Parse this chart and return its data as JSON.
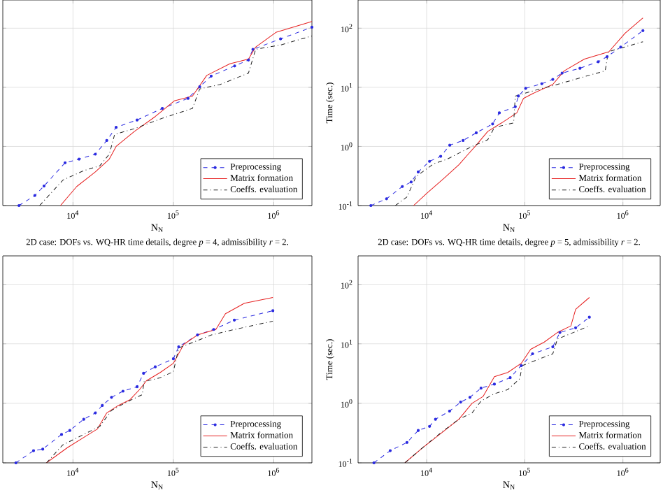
{
  "chart_data": [
    {
      "type": "line",
      "xlabel": "N$_{N}$",
      "log": "xy",
      "grid": true,
      "legend": "bottom right",
      "tick_labels": "x",
      "xlim": [
        2000,
        2400000
      ],
      "ylim": [
        0.1,
        300
      ],
      "xticks": [
        {
          "value": 10000,
          "label": "10$^{4}$"
        },
        {
          "value": 100000,
          "label": "10$^{5}$"
        },
        {
          "value": 1000000,
          "label": "10$^{6}$"
        }
      ],
      "yticks": [
        0.1,
        1,
        10,
        100
      ],
      "series": [
        {
          "name": "Preprocessing",
          "color": "#2a2ae0",
          "line_style": "dashed",
          "marker": "circle",
          "x": [
            2900,
            4170,
            5150,
            8350,
            11500,
            16700,
            21700,
            26900,
            43500,
            77600,
            140000,
            183000,
            238000,
            408000,
            560000,
            620000,
            1170000,
            2400000
          ],
          "values": [
            0.1,
            0.148,
            0.214,
            0.53,
            0.61,
            0.74,
            1.26,
            2.1,
            2.8,
            4.4,
            6.5,
            10.2,
            15.5,
            23,
            29,
            44,
            66,
            104
          ]
        },
        {
          "name": "Matrix formation",
          "color": "#e62020",
          "line_style": "solid",
          "marker": "none",
          "x": [
            7500,
            10900,
            16700,
            23000,
            26900,
            41000,
            66000,
            102000,
            155000,
            215000,
            365000,
            560000,
            660000,
            1050000,
            2400000
          ],
          "values": [
            0.1,
            0.21,
            0.37,
            0.61,
            1.0,
            1.8,
            3.2,
            5.9,
            7.1,
            15.9,
            25,
            30,
            48,
            85,
            130
          ]
        },
        {
          "name": "Coeffs. evaluation",
          "color": "#202020",
          "line_style": "dashdot",
          "marker": "none",
          "x": [
            4650,
            7950,
            12800,
            18500,
            23000,
            26000,
            41000,
            77600,
            155000,
            183000,
            294000,
            560000,
            660000,
            1170000,
            2400000
          ],
          "values": [
            0.1,
            0.27,
            0.39,
            0.47,
            0.74,
            1.6,
            2.0,
            3.0,
            4.4,
            9.4,
            11.2,
            17.4,
            44,
            52,
            74
          ]
        }
      ]
    },
    {
      "type": "line",
      "xlabel": "N$_{N}$",
      "ylabel": "Time (sec.)",
      "log": "xy",
      "grid": true,
      "legend": "bottom right",
      "xlim": [
        2000,
        2400000
      ],
      "ylim": [
        0.1,
        300
      ],
      "xticks": [
        {
          "value": 10000,
          "label": "10$^{4}$"
        },
        {
          "value": 100000,
          "label": "10$^{5}$"
        },
        {
          "value": 1000000,
          "label": "10$^{6}$"
        }
      ],
      "yticks": [
        {
          "value": 0.1,
          "label": "10$^{-1}$"
        },
        {
          "value": 1,
          "label": "10$^{0}$"
        },
        {
          "value": 10,
          "label": "10$^{1}$"
        },
        {
          "value": 100,
          "label": "10$^{2}$"
        }
      ],
      "series": [
        {
          "name": "Preprocessing",
          "color": "#2a2ae0",
          "line_style": "dashed",
          "marker": "circle",
          "x": [
            2700,
            3900,
            5650,
            6950,
            8200,
            10700,
            13900,
            17200,
            23500,
            32000,
            47000,
            55000,
            80000,
            86000,
            102000,
            149000,
            193000,
            240000,
            365000,
            560000,
            690000,
            950000,
            1600000
          ],
          "values": [
            0.1,
            0.13,
            0.21,
            0.25,
            0.37,
            0.56,
            0.68,
            1.05,
            1.26,
            1.7,
            2.4,
            3.7,
            4.7,
            7.1,
            9.6,
            11.5,
            13.6,
            17.4,
            21,
            27,
            33,
            48,
            91
          ]
        },
        {
          "name": "Matrix formation",
          "color": "#e62020",
          "line_style": "solid",
          "marker": "none",
          "x": [
            7350,
            10000,
            15400,
            21300,
            26500,
            32000,
            42000,
            58000,
            83000,
            97000,
            120000,
            193000,
            252000,
            405000,
            720000,
            1050000,
            1600000
          ],
          "values": [
            0.1,
            0.16,
            0.3,
            0.49,
            0.74,
            1.05,
            1.8,
            2.5,
            3.7,
            6.5,
            7.8,
            11.2,
            19,
            30,
            40,
            82,
            149
          ]
        },
        {
          "name": "Coeffs. evaluation",
          "color": "#202020",
          "line_style": "dashdot",
          "marker": "none",
          "x": [
            4800,
            6300,
            7800,
            11800,
            16200,
            29000,
            42000,
            49000,
            77000,
            80000,
            115000,
            215000,
            455000,
            660000,
            710000,
            1600000
          ],
          "values": [
            0.1,
            0.14,
            0.31,
            0.51,
            0.61,
            1.0,
            1.3,
            2.1,
            2.5,
            7.1,
            8.5,
            11.2,
            16,
            19,
            40,
            59
          ]
        }
      ]
    },
    {
      "type": "line",
      "title": "2D case: DOFs vs. WQ-HR time details, degree *p* = 4, admissibility *r* = 2.",
      "xlabel": "N$_{N}$",
      "log": "xy",
      "grid": true,
      "legend": "bottom right",
      "tick_labels": "x",
      "xlim": [
        2000,
        2400000
      ],
      "ylim": [
        0.1,
        300
      ],
      "xticks": [
        {
          "value": 10000,
          "label": "10$^{4}$"
        },
        {
          "value": 100000,
          "label": "10$^{5}$"
        },
        {
          "value": 1000000,
          "label": "10$^{6}$"
        }
      ],
      "yticks": [
        0.1,
        1,
        10,
        100
      ],
      "series": [
        {
          "name": "Preprocessing",
          "color": "#2a2ae0",
          "line_style": "dashed",
          "marker": "circle",
          "x": [
            2700,
            4050,
            5000,
            7700,
            9300,
            12800,
            16700,
            19600,
            24200,
            31500,
            43500,
            50500,
            66000,
            100000,
            113000,
            174000,
            252000,
            405000,
            980000
          ],
          "values": [
            0.1,
            0.16,
            0.17,
            0.3,
            0.35,
            0.54,
            0.69,
            0.92,
            1.26,
            1.6,
            1.9,
            3.2,
            4.1,
            5.6,
            8.9,
            14.1,
            17.4,
            25,
            36
          ]
        },
        {
          "name": "Matrix formation",
          "color": "#e62020",
          "line_style": "solid",
          "marker": "none",
          "x": [
            5450,
            8800,
            13400,
            17500,
            21700,
            28300,
            37000,
            46000,
            54000,
            74000,
            100000,
            127000,
            174000,
            265000,
            330000,
            510000,
            980000
          ],
          "values": [
            0.1,
            0.18,
            0.28,
            0.37,
            0.69,
            0.92,
            1.15,
            1.7,
            2.4,
            3.3,
            4.7,
            9.8,
            14.1,
            17.4,
            32,
            48,
            60
          ]
        },
        {
          "name": "Coeffs. evaluation",
          "color": "#202020",
          "line_style": "dashdot",
          "marker": "none",
          "x": [
            5450,
            7900,
            12800,
            18500,
            24200,
            35000,
            49000,
            51000,
            74000,
            100000,
            113000,
            240000,
            405000,
            980000
          ],
          "values": [
            0.1,
            0.2,
            0.3,
            0.41,
            0.76,
            1.07,
            1.4,
            2.3,
            2.7,
            3.4,
            8.5,
            14.1,
            17.4,
            24
          ]
        }
      ]
    },
    {
      "type": "line",
      "title": "2D case: DOFs vs. WQ-HR time details, degree *p* = 5, admissibility *r* = 2.",
      "xlabel": "N$_{N}$",
      "ylabel": "Time (sec.)",
      "log": "xy",
      "grid": true,
      "legend": "bottom right",
      "xlim": [
        2000,
        2400000
      ],
      "ylim": [
        0.1,
        300
      ],
      "xticks": [
        {
          "value": 10000,
          "label": "10$^{4}$"
        },
        {
          "value": 100000,
          "label": "10$^{5}$"
        },
        {
          "value": 1000000,
          "label": "10$^{6}$"
        }
      ],
      "yticks": [
        {
          "value": 0.1,
          "label": "10$^{-1}$"
        },
        {
          "value": 1,
          "label": "10$^{0}$"
        },
        {
          "value": 10,
          "label": "10$^{1}$"
        },
        {
          "value": 100,
          "label": "10$^{2}$"
        }
      ],
      "series": [
        {
          "name": "Preprocessing",
          "color": "#2a2ae0",
          "line_style": "dashed",
          "marker": "circle",
          "x": [
            2900,
            4250,
            6300,
            8200,
            10700,
            12300,
            17100,
            22200,
            27600,
            35800,
            49000,
            71000,
            92000,
            120000,
            193000,
            228000,
            330000,
            455000
          ],
          "values": [
            0.1,
            0.16,
            0.22,
            0.35,
            0.41,
            0.54,
            0.74,
            1.05,
            1.26,
            1.8,
            2.1,
            2.7,
            4.3,
            6.8,
            8.9,
            15.5,
            18.6,
            28
          ]
        },
        {
          "name": "Matrix formation",
          "color": "#e62020",
          "line_style": "solid",
          "marker": "none",
          "x": [
            6000,
            9100,
            13900,
            21300,
            29000,
            37500,
            49000,
            67000,
            92000,
            115000,
            158000,
            215000,
            295000,
            330000,
            455000
          ],
          "values": [
            0.1,
            0.18,
            0.31,
            0.54,
            1.0,
            1.3,
            2.8,
            3.3,
            4.7,
            8.1,
            10.7,
            15.5,
            20,
            38,
            60
          ]
        },
        {
          "name": "Coeffs. evaluation",
          "color": "#202020",
          "line_style": "dashdot",
          "marker": "none",
          "x": [
            6000,
            9100,
            14600,
            21300,
            29000,
            36000,
            49000,
            67000,
            89000,
            94000,
            193000,
            215000,
            455000
          ],
          "values": [
            0.1,
            0.18,
            0.34,
            0.54,
            0.69,
            1.1,
            1.45,
            1.7,
            2.6,
            4.3,
            6.8,
            12.0,
            20
          ]
        }
      ]
    }
  ]
}
